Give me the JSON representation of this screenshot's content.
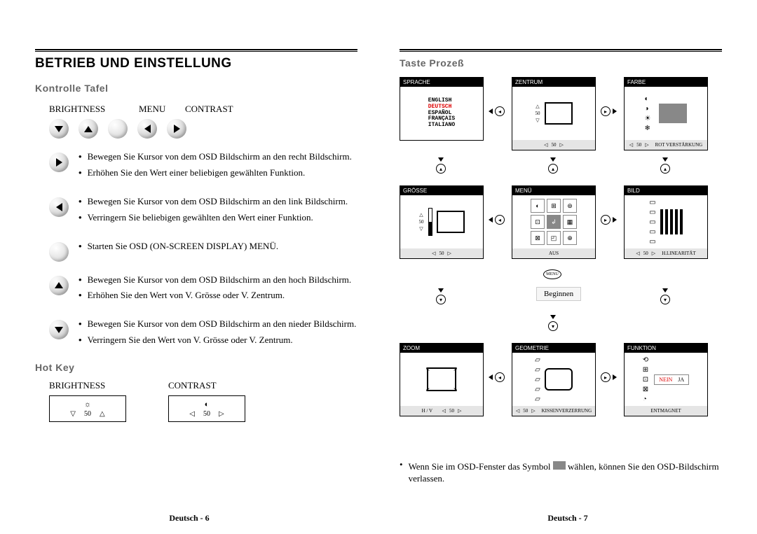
{
  "left": {
    "title": "BETRIEB UND EINSTELLUNG",
    "section1": "Kontrolle Tafel",
    "labels": {
      "brightness": "BRIGHTNESS",
      "menu": "MENU",
      "contrast": "CONTRAST"
    },
    "items": [
      {
        "dir": "right",
        "lines": [
          "Bewegen Sie Kursor von dem OSD Bildschirm an den recht Bildschirm.",
          "Erhöhen Sie den Wert einer beliebigen gewählten Funktion."
        ]
      },
      {
        "dir": "left",
        "lines": [
          "Bewegen Sie Kursor von dem OSD Bildschirm an den link Bildschirm.",
          "Verringern Sie beliebigen gewählten den Wert einer Funktion."
        ]
      },
      {
        "dir": "blank",
        "lines": [
          "Starten Sie OSD (ON-SCREEN DISPLAY) MENÜ."
        ]
      },
      {
        "dir": "up",
        "lines": [
          "Bewegen Sie Kursor von dem OSD Bildschirm an den hoch Bildschirm.",
          "Erhöhen Sie den Wert von V. Grösse oder V. Zentrum."
        ]
      },
      {
        "dir": "down",
        "lines": [
          "Bewegen Sie Kursor von dem OSD Bildschirm an den nieder Bildschirm.",
          "Verringern Sie den Wert von V. Grösse oder V. Zentrum."
        ]
      }
    ],
    "section2": "Hot Key",
    "hot": {
      "brightness": "BRIGHTNESS",
      "contrast": "CONTRAST",
      "val": "50"
    },
    "footer": "Deutsch - 6"
  },
  "right": {
    "title": "Taste Prozeß",
    "osd": {
      "sprache": {
        "hdr": "SPRACHE",
        "langs": [
          "ENGLISH",
          "DEUTSCH",
          "ESPAÑOL",
          "FRANÇAIS",
          "ITALIANO"
        ],
        "selected": 1
      },
      "zentrum": {
        "hdr": "ZENTRUM",
        "val": "50",
        "val2": "50"
      },
      "farbe": {
        "hdr": "FARBE",
        "val": "50",
        "foot": "ROT VERSTÄRKUNG"
      },
      "grosse": {
        "hdr": "GRÖSSE",
        "val": "50",
        "val2": "50"
      },
      "menu": {
        "hdr": "MENÜ",
        "foot": "AUS"
      },
      "bild": {
        "hdr": "BILD",
        "val": "50",
        "foot": "H.LINEARITÄT"
      },
      "zoom": {
        "hdr": "ZOOM",
        "foot": "H / V",
        "val": "50"
      },
      "geometrie": {
        "hdr": "GEOMETRIE",
        "val": "50",
        "foot": "KISSENVERZERRUNG"
      },
      "funktion": {
        "hdr": "FUNKTION",
        "nein": "NEIN",
        "ja": "JA",
        "foot": "ENTMAGNET"
      }
    },
    "beginnen": "Beginnen",
    "menulabel": "MENU",
    "note_pre": "Wenn Sie im OSD-Fenster das Symbol",
    "note_post": "wählen, können Sie den OSD-Bildschirm verlassen.",
    "footer": "Deutsch - 7"
  }
}
